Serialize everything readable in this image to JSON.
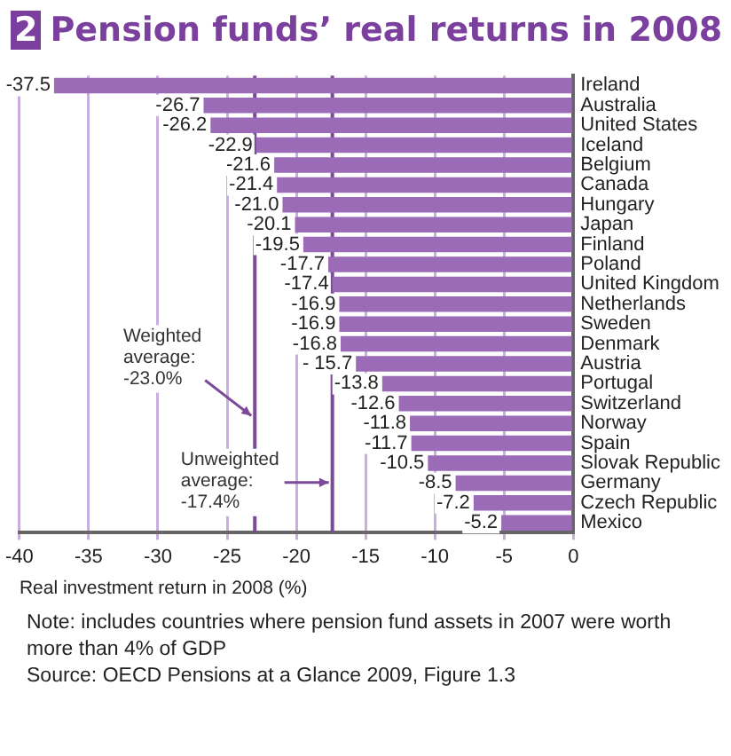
{
  "chart_data": {
    "type": "bar",
    "orientation": "horizontal",
    "title": "2 Pension funds’ real returns in 2008",
    "categories": [
      "Ireland",
      "Australia",
      "United States",
      "Iceland",
      "Belgium",
      "Canada",
      "Hungary",
      "Japan",
      "Finland",
      "Poland",
      "United Kingdom",
      "Netherlands",
      "Sweden",
      "Denmark",
      "Austria",
      "Portugal",
      "Switzerland",
      "Norway",
      "Spain",
      "Slovak Republic",
      "Germany",
      "Czech Republic",
      "Mexico"
    ],
    "values": [
      -37.5,
      -26.7,
      -26.2,
      -22.9,
      -21.6,
      -21.4,
      -21.0,
      -20.1,
      -19.5,
      -17.7,
      -17.4,
      -16.9,
      -16.9,
      -16.8,
      -15.7,
      -13.8,
      -12.6,
      -11.8,
      -11.7,
      -10.5,
      -8.5,
      -7.2,
      -5.2
    ],
    "value_labels": [
      "-37.5",
      "-26.7",
      "-26.2",
      "-22.9",
      "-21.6",
      "-21.4",
      "-21.0",
      "-20.1",
      "-19.5",
      "-17.7",
      "-17.4",
      "-16.9",
      "-16.9",
      "-16.8",
      "- 15.7",
      "-13.8",
      "-12.6",
      "-11.8",
      "-11.7",
      "-10.5",
      "-8.5",
      "-7.2",
      "-5.2"
    ],
    "color": "#9b6bb8",
    "xlim": [
      -40,
      0
    ],
    "xticks": [
      -40,
      -35,
      -30,
      -25,
      -20,
      -15,
      -10,
      -5,
      0
    ],
    "xlabel": "Real investment return in 2008 (%)",
    "grid": "x",
    "legend": false,
    "ref_lines": [
      {
        "axis": "x",
        "value": -23.0,
        "label": "Weighted average: -23.0%",
        "color": "#7b4a98"
      },
      {
        "axis": "x",
        "value": -17.4,
        "label": "Unweighted average: -17.4%",
        "color": "#7b4a98"
      }
    ],
    "annotations": [
      "Note: includes countries where pension fund assets in 2007 were worth more than 4% of GDP",
      "Source: OECD Pensions at a Glance 2009, Figure 1.3"
    ]
  }
}
